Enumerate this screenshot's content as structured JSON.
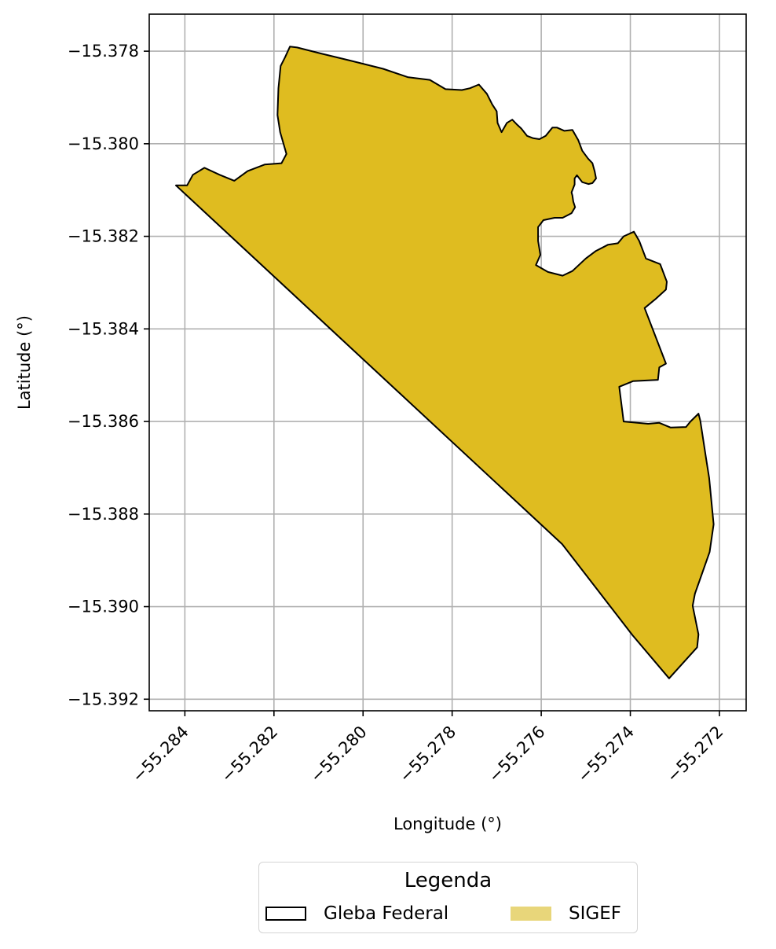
{
  "chart_data": {
    "type": "map",
    "xlabel": "Longitude (°)",
    "ylabel": "Latitude (°)",
    "xlim": [
      -55.2848,
      -55.2714
    ],
    "ylim": [
      -15.39225,
      -15.3772
    ],
    "x_ticks": [
      -55.284,
      -55.282,
      -55.28,
      -55.278,
      -55.276,
      -55.274,
      -55.272
    ],
    "x_tick_labels": [
      "−55.284",
      "−55.282",
      "−55.280",
      "−55.278",
      "−55.276",
      "−55.274",
      "−55.272"
    ],
    "y_ticks": [
      -15.378,
      -15.38,
      -15.382,
      -15.384,
      -15.386,
      -15.388,
      -15.39,
      -15.392
    ],
    "y_tick_labels": [
      "−15.378",
      "−15.380",
      "−15.382",
      "−15.384",
      "−15.386",
      "−15.388",
      "−15.390",
      "−15.392"
    ],
    "grid": true,
    "layers": [
      {
        "name": "Gleba Federal",
        "fill": "none",
        "edge_color": "#000000"
      },
      {
        "name": "SIGEF",
        "fill": "#dfbc20",
        "edge_color": "#000000"
      }
    ],
    "polygon": [
      [
        -55.2842,
        -15.3809
      ],
      [
        -55.28395,
        -15.3809
      ],
      [
        -55.28382,
        -15.38067
      ],
      [
        -55.28356,
        -15.38052
      ],
      [
        -55.28322,
        -15.38067
      ],
      [
        -55.28289,
        -15.3808
      ],
      [
        -55.28259,
        -15.38059
      ],
      [
        -55.28221,
        -15.38045
      ],
      [
        -55.28183,
        -15.38042
      ],
      [
        -55.28172,
        -15.38022
      ],
      [
        -55.28186,
        -15.37975
      ],
      [
        -55.28192,
        -15.37938
      ],
      [
        -55.2819,
        -15.3788
      ],
      [
        -55.28185,
        -15.37832
      ],
      [
        -55.28175,
        -15.37813
      ],
      [
        -55.28164,
        -15.3779
      ],
      [
        -55.28148,
        -15.37792
      ],
      [
        -55.28095,
        -15.37805
      ],
      [
        -55.2803,
        -15.3782
      ],
      [
        -55.27955,
        -15.37838
      ],
      [
        -55.279,
        -15.37856
      ],
      [
        -55.2785,
        -15.37862
      ],
      [
        -55.27815,
        -15.37882
      ],
      [
        -55.27778,
        -15.37884
      ],
      [
        -55.2776,
        -15.3788
      ],
      [
        -55.2774,
        -15.37872
      ],
      [
        -55.27722,
        -15.37892
      ],
      [
        -55.2771,
        -15.37915
      ],
      [
        -55.277,
        -15.3793
      ],
      [
        -55.27698,
        -15.37955
      ],
      [
        -55.27689,
        -15.37975
      ],
      [
        -55.27677,
        -15.37955
      ],
      [
        -55.27665,
        -15.37948
      ],
      [
        -55.27655,
        -15.37958
      ],
      [
        -55.27645,
        -15.37967
      ],
      [
        -55.27632,
        -15.37983
      ],
      [
        -55.27618,
        -15.37988
      ],
      [
        -55.27604,
        -15.3799
      ],
      [
        -55.2759,
        -15.37983
      ],
      [
        -55.27575,
        -15.37965
      ],
      [
        -55.27565,
        -15.37965
      ],
      [
        -55.27548,
        -15.37972
      ],
      [
        -55.2753,
        -15.3797
      ],
      [
        -55.27517,
        -15.37992
      ],
      [
        -55.27508,
        -15.38015
      ],
      [
        -55.27495,
        -15.38032
      ],
      [
        -55.27485,
        -15.38042
      ],
      [
        -55.2748,
        -15.3806
      ],
      [
        -55.27477,
        -15.38075
      ],
      [
        -55.27485,
        -15.38085
      ],
      [
        -55.27494,
        -15.38087
      ],
      [
        -55.27508,
        -15.38083
      ],
      [
        -55.2752,
        -15.38068
      ],
      [
        -55.27525,
        -15.38075
      ],
      [
        -55.27525,
        -15.38088
      ],
      [
        -55.27532,
        -15.38105
      ],
      [
        -55.2753,
        -15.38112
      ],
      [
        -55.27528,
        -15.38125
      ],
      [
        -55.27524,
        -15.38137
      ],
      [
        -55.27532,
        -15.3815
      ],
      [
        -55.27542,
        -15.38155
      ],
      [
        -55.27552,
        -15.3816
      ],
      [
        -55.2757,
        -15.3816
      ],
      [
        -55.27595,
        -15.38165
      ],
      [
        -55.27607,
        -15.3818
      ],
      [
        -55.27607,
        -15.3821
      ],
      [
        -55.27602,
        -15.3824
      ],
      [
        -55.27612,
        -15.38262
      ],
      [
        -55.27585,
        -15.38277
      ],
      [
        -55.27552,
        -15.38285
      ],
      [
        -55.2753,
        -15.38275
      ],
      [
        -55.275,
        -15.38248
      ],
      [
        -55.27478,
        -15.38232
      ],
      [
        -55.2745,
        -15.38218
      ],
      [
        -55.27428,
        -15.38215
      ],
      [
        -55.27415,
        -15.382
      ],
      [
        -55.27392,
        -15.3819
      ],
      [
        -55.2738,
        -15.3821
      ],
      [
        -55.27365,
        -15.38248
      ],
      [
        -55.27333,
        -15.3826
      ],
      [
        -55.27318,
        -15.38298
      ],
      [
        -55.2732,
        -15.38315
      ],
      [
        -55.27343,
        -15.38335
      ],
      [
        -55.27368,
        -15.38355
      ],
      [
        -55.2732,
        -15.38475
      ],
      [
        -55.27335,
        -15.38483
      ],
      [
        -55.27338,
        -15.3851
      ],
      [
        -55.27394,
        -15.38513
      ],
      [
        -55.27425,
        -15.38525
      ],
      [
        -55.27415,
        -15.386
      ],
      [
        -55.2736,
        -15.38605
      ],
      [
        -55.27335,
        -15.38603
      ],
      [
        -55.2731,
        -15.38613
      ],
      [
        -55.27275,
        -15.38612
      ],
      [
        -55.27265,
        -15.386
      ],
      [
        -55.27247,
        -15.38583
      ],
      [
        -55.27243,
        -15.38598
      ],
      [
        -55.2723,
        -15.3868
      ],
      [
        -55.27223,
        -15.38722
      ],
      [
        -55.27213,
        -15.38822
      ],
      [
        -55.27222,
        -15.38882
      ],
      [
        -55.27255,
        -15.38972
      ],
      [
        -55.2726,
        -15.38998
      ],
      [
        -55.27247,
        -15.3906
      ],
      [
        -55.2725,
        -15.39088
      ],
      [
        -55.27313,
        -15.39155
      ],
      [
        -55.27395,
        -15.39062
      ],
      [
        -55.27553,
        -15.38865
      ],
      [
        -55.2842,
        -15.3809
      ]
    ]
  },
  "legend": {
    "title": "Legenda",
    "items": [
      {
        "label": "Gleba Federal",
        "fill": "none",
        "edge_color": "#000000"
      },
      {
        "label": "SIGEF",
        "fill": "#e8d67a",
        "edge_color": "none"
      }
    ]
  }
}
